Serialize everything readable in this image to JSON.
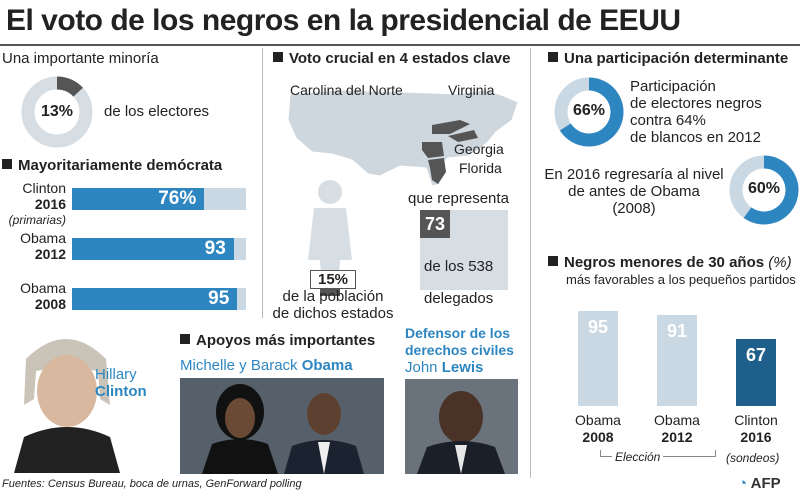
{
  "title": "El voto de los negros en la presidencial de EEUU",
  "sec1": {
    "heading": "Una importante minoría",
    "pct": "13%",
    "pct_value": 13,
    "label": "de los electores"
  },
  "sec2": {
    "heading": "Mayoritariamente demócrata",
    "bars": [
      {
        "l1": "Clinton",
        "l2": "2016",
        "l3": "(primarias)",
        "value": 76,
        "text": "76%"
      },
      {
        "l1": "Obama",
        "l2": "2012",
        "l3": "",
        "value": 93,
        "text": "93"
      },
      {
        "l1": "Obama",
        "l2": "2008",
        "l3": "",
        "value": 95,
        "text": "95"
      }
    ]
  },
  "sec3": {
    "heading": "Voto crucial en 4 estados clave",
    "states": [
      "Carolina del Norte",
      "Virginia",
      "Georgia",
      "Florida"
    ],
    "pop_pct": "15%",
    "pop_l1": "de la población",
    "pop_l2": "de dichos estados",
    "rep": "que representa",
    "delegates": "73",
    "of": "de los 538",
    "deleg_label": "delegados"
  },
  "sec4": {
    "heading": "Una participación determinante",
    "c1_pct": "66%",
    "c1_value": 66,
    "c1_l1": "Participación",
    "c1_l2": "de electores negros",
    "c1_l3": "contra 64%",
    "c1_l4": "de blancos en 2012",
    "c2_l1": "En 2016 regresaría al nivel",
    "c2_l2": "de antes de Obama",
    "c2_l3": "(2008)",
    "c2_pct": "60%",
    "c2_value": 60
  },
  "sec5": {
    "heading": "Negros menores de 30 años",
    "unit": "(%)",
    "sub": "más favorables a los pequeños partidos"
  },
  "sec6": {
    "heading": "Apoyos más importantes",
    "hillary1": "Hillary",
    "hillary2": "Clinton",
    "obama_pre": "Michelle y Barack ",
    "obama_bold": "Obama",
    "lewis_h1": "Defensor de los",
    "lewis_h2": "derechos civiles",
    "lewis_pre": "John ",
    "lewis_bold": "Lewis"
  },
  "footer": {
    "source": "Fuentes: Census Bureau, boca de urnas, GenForward polling",
    "logo": "AFP"
  },
  "colors": {
    "accent": "#2e86c1",
    "light": "#c9d8e3",
    "dark_bar": "#1f5f8b",
    "mark": "#555555"
  },
  "chart_data": [
    {
      "type": "bar",
      "title": "Mayoritariamente demócrata",
      "categories": [
        "Clinton 2016 (primarias)",
        "Obama 2012",
        "Obama 2008"
      ],
      "values": [
        76,
        93,
        95
      ],
      "ylim": [
        0,
        100
      ]
    },
    {
      "type": "bar",
      "title": "Negros menores de 30 años (%)",
      "categories": [
        "Obama 2008",
        "Obama 2012",
        "Clinton 2016"
      ],
      "values": [
        95,
        91,
        67
      ],
      "ylim": [
        0,
        100
      ],
      "groups": [
        {
          "label": "Elección",
          "categories": [
            "Obama 2008",
            "Obama 2012"
          ]
        },
        {
          "label": "(sondeos)",
          "categories": [
            "Clinton 2016"
          ]
        }
      ]
    },
    {
      "type": "pie",
      "title": "Una importante minoría",
      "values": [
        13,
        87
      ]
    }
  ],
  "vbars": [
    {
      "n1": "Obama",
      "n2": "2008",
      "value": 95,
      "text": "95",
      "dark": false
    },
    {
      "n1": "Obama",
      "n2": "2012",
      "value": 91,
      "text": "91",
      "dark": false
    },
    {
      "n1": "Clinton",
      "n2": "2016",
      "value": 67,
      "text": "67",
      "dark": true
    }
  ],
  "vbar_group1": "Elección",
  "vbar_group2": "(sondeos)"
}
